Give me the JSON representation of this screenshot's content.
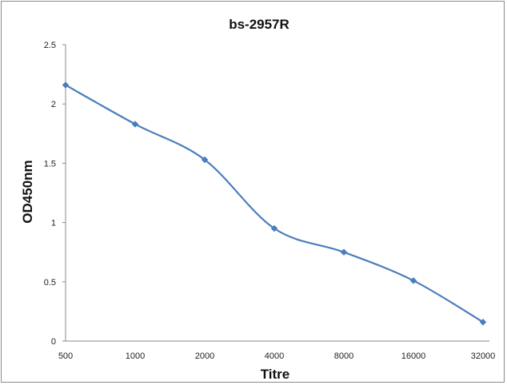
{
  "chart_data": {
    "type": "line",
    "title": "bs-2957R",
    "xlabel": "Titre",
    "ylabel": "OD450nm",
    "categories": [
      "500",
      "1000",
      "2000",
      "4000",
      "8000",
      "16000",
      "32000"
    ],
    "series": [
      {
        "values": [
          2.16,
          1.83,
          1.53,
          0.95,
          0.75,
          0.51,
          0.16
        ]
      }
    ],
    "ylim": [
      0,
      2.5
    ],
    "yticks": [
      "0",
      "0.5",
      "1",
      "1.5",
      "2",
      "2.5"
    ],
    "grid": false,
    "legend": "none",
    "colors": {
      "line": "#4a7ebb",
      "axis": "#888888",
      "frame": "#8a8a8a"
    }
  }
}
